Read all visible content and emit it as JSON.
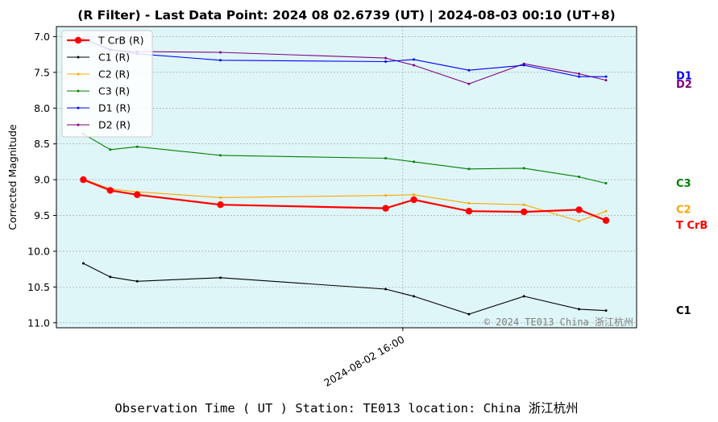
{
  "chart_data": {
    "type": "line",
    "title": "(R Filter) - Last Data Point: 2024 08 02.6739 (UT) | 2024-08-03 00:10 (UT+8)",
    "xlabel": "Observation Time ( UT )  Station: TE013 location: China 浙江杭州",
    "ylabel": "Corrected Magnitude",
    "y_inverted": true,
    "ylim": [
      11.07,
      6.86
    ],
    "yticks": [
      "7.0",
      "7.5",
      "8.0",
      "8.5",
      "9.0",
      "9.5",
      "10.0",
      "10.5",
      "11.0"
    ],
    "xlim": [
      "2024-08-02 11:17",
      "2024-08-02 19:11"
    ],
    "xticks": [
      {
        "value": "2024-08-02 16:00",
        "label": "2024-08-02 16:00"
      }
    ],
    "x": [
      "2024-08-02 11:39",
      "2024-08-02 12:01",
      "2024-08-02 12:23",
      "2024-08-02 13:31",
      "2024-08-02 15:46",
      "2024-08-02 16:09",
      "2024-08-02 16:54",
      "2024-08-02 17:39",
      "2024-08-02 18:24",
      "2024-08-02 18:46"
    ],
    "grid": true,
    "legend_position": "top-left",
    "background": "#dff6f8",
    "watermark": "© 2024 TE013 China 浙江杭州",
    "series": [
      {
        "name": "T CrB (R)",
        "end_label": "T CrB",
        "color": "#ff0000",
        "values": [
          9.0,
          9.15,
          9.21,
          9.35,
          9.4,
          9.28,
          9.44,
          9.45,
          9.42,
          9.57
        ]
      },
      {
        "name": "C1 (R)",
        "end_label": "C1",
        "color": "#000000",
        "values": [
          10.17,
          10.36,
          10.42,
          10.37,
          10.53,
          10.63,
          10.88,
          10.63,
          10.81,
          10.83
        ]
      },
      {
        "name": "C2 (R)",
        "end_label": "C2",
        "color": "#ffa500",
        "values": [
          8.99,
          9.13,
          9.17,
          9.25,
          9.22,
          9.21,
          9.33,
          9.35,
          9.58,
          9.44
        ]
      },
      {
        "name": "C3 (R)",
        "end_label": "C3",
        "color": "#008000",
        "values": [
          8.36,
          8.58,
          8.54,
          8.66,
          8.7,
          8.75,
          8.85,
          8.84,
          8.96,
          9.05
        ]
      },
      {
        "name": "D1 (R)",
        "end_label": "D1",
        "color": "#0000ff",
        "values": [
          7.03,
          7.18,
          7.24,
          7.33,
          7.35,
          7.32,
          7.47,
          7.4,
          7.56,
          7.56
        ]
      },
      {
        "name": "D2 (R)",
        "end_label": "D2",
        "color": "#800080",
        "values": [
          7.03,
          7.19,
          7.21,
          7.22,
          7.3,
          7.4,
          7.66,
          7.38,
          7.52,
          7.61
        ]
      }
    ]
  }
}
